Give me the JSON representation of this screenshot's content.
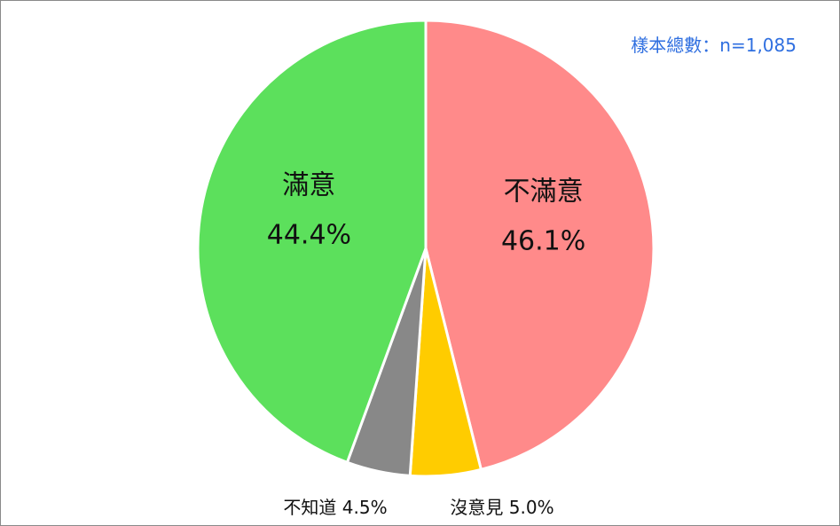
{
  "sample_note": "樣本總數：n=1,085",
  "chart_data": {
    "type": "pie",
    "slices": [
      {
        "label": "不滿意",
        "value": 46.1,
        "value_label": "46.1%",
        "color": "#ff8a8a"
      },
      {
        "label": "沒意見",
        "value": 5.0,
        "value_label": "5.0%",
        "color": "#ffcc00"
      },
      {
        "label": "不知道",
        "value": 4.5,
        "value_label": "4.5%",
        "color": "#888888"
      },
      {
        "label": "滿意",
        "value": 44.4,
        "value_label": "44.4%",
        "color": "#5ce05c"
      }
    ],
    "start": "12 o'clock",
    "direction": "clockwise"
  }
}
